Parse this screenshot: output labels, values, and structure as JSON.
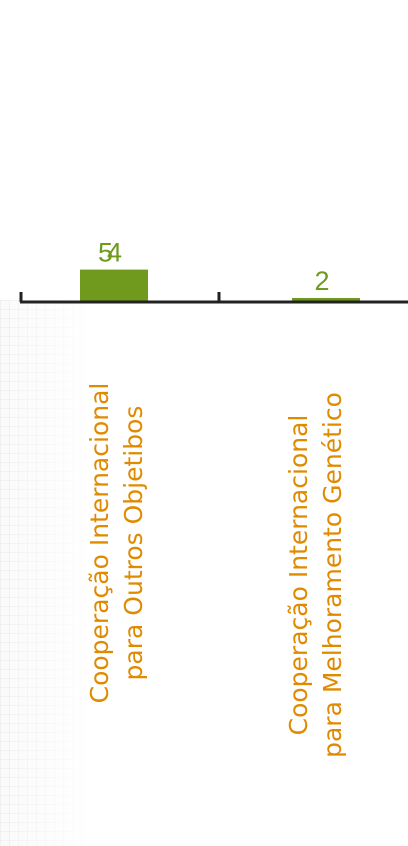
{
  "colors": {
    "bar": "#6f9a1e",
    "value_label": "#6f9a1e",
    "category_label": "#e08a00",
    "axis": "#222222"
  },
  "chart_data": {
    "type": "bar",
    "categories": [
      [
        "Cooperação  Internacional",
        "para Outros Objetibos"
      ],
      [
        "Cooperação Internacional",
        "para Melhoramento Genético"
      ]
    ],
    "values": [
      54,
      2
    ],
    "data_labels": [
      "54",
      "2"
    ],
    "title": "",
    "xlabel": "",
    "ylabel": "",
    "ylim": [
      0,
      200
    ],
    "grid": false,
    "legend": "none"
  }
}
